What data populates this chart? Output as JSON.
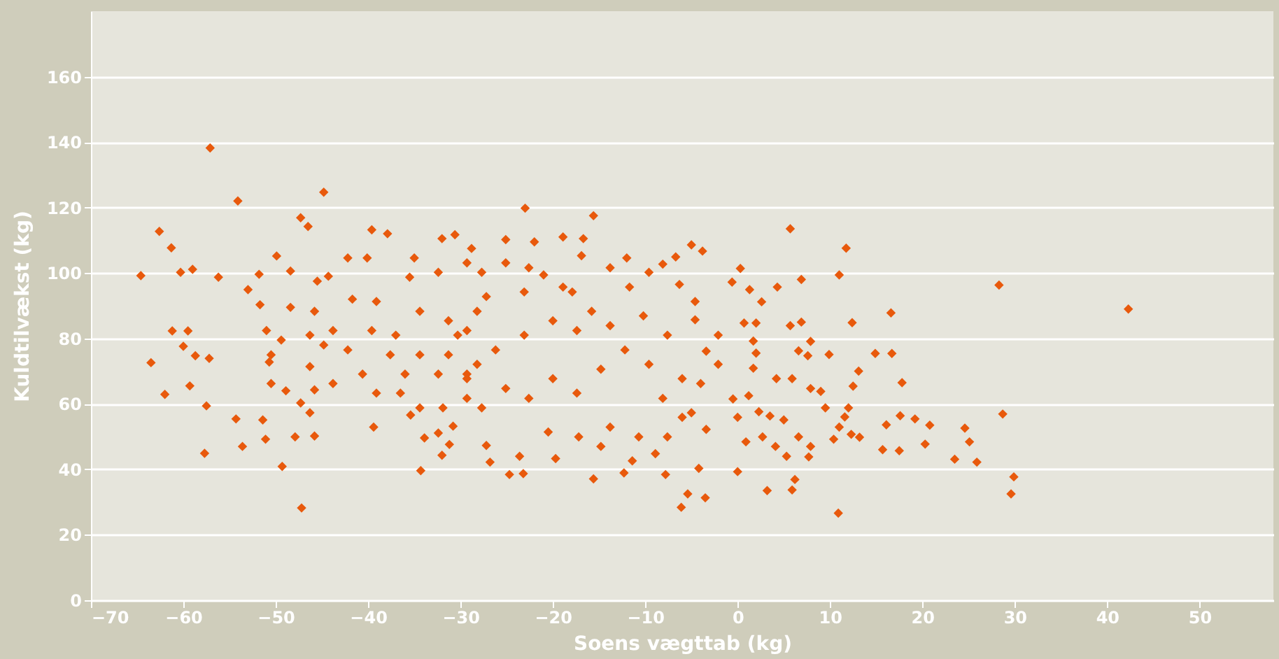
{
  "chart_data": {
    "type": "scatter",
    "xlabel": "Soens vægttab (kg)",
    "ylabel": "Kuldtilvækst (kg)",
    "marker": "diamond",
    "color": "#e8590c",
    "grid": "y",
    "xlim": [
      -70,
      58
    ],
    "ylim": [
      0,
      180
    ],
    "xticks": [
      -70,
      -60,
      -50,
      -40,
      -30,
      -20,
      -10,
      0,
      10,
      20,
      30,
      40,
      50
    ],
    "yticks": [
      0,
      20,
      40,
      60,
      80,
      100,
      120,
      140,
      160
    ],
    "x": [
      11.75,
      11.0,
      28.3,
      42.3,
      16.6,
      12.4,
      14.9,
      16.7,
      13.1,
      17.8,
      12.5,
      12.0,
      11.6,
      17.6,
      19.2,
      16.1,
      20.8,
      28.7,
      24.6,
      25.1,
      11.0,
      12.3,
      13.2,
      10.4,
      15.7,
      17.5,
      20.3,
      23.5,
      25.9,
      29.9,
      29.6,
      10.9,
      5.7,
      0.3,
      -0.6,
      1.3,
      4.3,
      2.6,
      6.9,
      0.7,
      2.0,
      5.7,
      6.9,
      1.7,
      2.0,
      7.9,
      9.9,
      6.6,
      7.6,
      1.7,
      4.2,
      1.2,
      5.9,
      7.9,
      9.0,
      -0.5,
      2.3,
      3.5,
      5.0,
      9.5,
      0.0,
      0.9,
      2.7,
      4.1,
      5.3,
      6.6,
      7.9,
      7.7,
      0.0,
      3.2,
      6.2,
      5.9,
      -5.0,
      -3.8,
      -6.7,
      -15.6,
      -23.0,
      -6.3,
      -8.1,
      -4.6,
      -2.1,
      -4.6,
      -3.4,
      -2.1,
      -4.0,
      -5.0,
      -3.4,
      -4.2,
      -3.5,
      -5.4,
      -6.1,
      -7.8,
      -8.9,
      -7.6,
      -6.0,
      -12.3,
      -15.6,
      -11.4,
      -14.8,
      -17.2,
      -19.7,
      -23.2,
      -24.7,
      -26.8,
      -27.2,
      -23.6,
      -20.5,
      -13.8,
      -10.7,
      -8.1,
      -6.0,
      -9.6,
      -12.2,
      -14.8,
      -17.4,
      -20.0,
      -22.6,
      -25.1,
      -27.7,
      -29.3,
      -26.2,
      -23.1,
      -20.0,
      -17.4,
      -13.8,
      -10.2,
      -7.6,
      -15.8,
      -18.9,
      -22.6,
      -25.1,
      -27.7,
      -28.8,
      -25.1,
      -22.0,
      -16.7,
      -18.9,
      -16.9,
      -21.0,
      -13.8,
      -12.0,
      -9.6,
      -11.7,
      -17.9,
      -23.1,
      -27.2,
      -29.3,
      -40.1,
      -37.9,
      -39.6,
      -32.0,
      -30.6,
      -35.0,
      -35.5,
      -32.4,
      -29.3,
      -42.2,
      -44.3,
      -45.5,
      -48.4,
      -49.9,
      -51.8,
      -53.0,
      -56.2,
      -48.4,
      -45.8,
      -41.7,
      -39.1,
      -34.4,
      -31.3,
      -28.2,
      -46.3,
      -43.8,
      -39.6,
      -37.0,
      -30.3,
      -51.0,
      -49.4,
      -50.5,
      -44.8,
      -42.2,
      -37.6,
      -34.4,
      -31.3,
      -28.2,
      -40.6,
      -36.0,
      -32.4,
      -29.3,
      -46.3,
      -50.7,
      -50.5,
      -48.9,
      -45.8,
      -43.8,
      -39.1,
      -36.5,
      -34.4,
      -31.9,
      -29.3,
      -47.3,
      -46.3,
      -51.4,
      -54.3,
      -45.8,
      -47.9,
      -39.4,
      -35.4,
      -33.9,
      -32.4,
      -30.8,
      -32.0,
      -31.2,
      -34.3,
      -49.3,
      -51.1,
      -53.6,
      -57.7,
      -57.5,
      -59.3,
      -62.0,
      -63.5,
      -61.2,
      -59.5,
      -60.0,
      -58.7,
      -57.2,
      -64.6,
      -62.6,
      -61.3,
      -60.3,
      -59.0,
      -57.1,
      -54.1,
      -44.8,
      -47.3,
      -46.5,
      -47.2,
      -51.7
    ],
    "values": [
      107.6,
      99.4,
      96.3,
      89,
      87.8,
      84.8,
      75.4,
      75.4,
      70,
      66.5,
      65.4,
      58.8,
      56,
      56.4,
      55.4,
      53.6,
      53.5,
      56.9,
      52.6,
      48.4,
      52.9,
      50.7,
      49.8,
      49.2,
      46,
      45.7,
      47.7,
      43.1,
      42.2,
      37.7,
      32.5,
      26.6,
      113.5,
      101.4,
      97.2,
      94.9,
      95.7,
      91.2,
      98,
      84.7,
      84.7,
      83.9,
      85,
      79.2,
      75.5,
      79.1,
      75.1,
      76.2,
      74.7,
      70.9,
      67.7,
      62.5,
      67.7,
      64.7,
      63.8,
      61.5,
      57.6,
      56.3,
      55.1,
      58.8,
      55.9,
      48.4,
      49.9,
      47,
      44,
      49.9,
      47,
      43.8,
      39.3,
      33.5,
      36.9,
      33.7,
      108.6,
      106.7,
      104.9,
      117.5,
      119.8,
      96.5,
      102.7,
      91.3,
      81,
      85.7,
      76.1,
      72.1,
      66.2,
      57.3,
      52.2,
      40.3,
      31.3,
      32.5,
      28.4,
      38.4,
      44.8,
      49.9,
      55.9,
      38.9,
      37.1,
      42.6,
      47,
      49.9,
      43.3,
      38.7,
      38.4,
      42.2,
      47.3,
      44,
      51.4,
      52.9,
      49.9,
      61.7,
      67.7,
      72.1,
      76.5,
      70.6,
      63.3,
      67.7,
      61.7,
      64.7,
      58.8,
      69.1,
      76.5,
      81,
      85.4,
      82.4,
      83.9,
      86.9,
      81,
      88.3,
      95.7,
      101.6,
      103.1,
      100.2,
      107.5,
      110.2,
      109.5,
      110.5,
      111,
      105.3,
      99.4,
      101.6,
      104.6,
      100.2,
      95.7,
      94.2,
      94.2,
      92.8,
      82.4,
      104.6,
      112,
      113.2,
      110.5,
      111.7,
      104.6,
      98.7,
      100.2,
      103.1,
      104.6,
      99,
      97.5,
      100.6,
      105.2,
      99.6,
      94.9,
      98.7,
      89.5,
      88.3,
      92,
      91.3,
      88.3,
      85.4,
      88.3,
      81,
      82.4,
      82.4,
      81,
      81,
      82.4,
      79.5,
      75,
      78,
      76.5,
      75,
      75,
      75,
      72.1,
      69.1,
      69.1,
      69.1,
      67.7,
      71.4,
      72.8,
      66.2,
      64,
      64.3,
      66.2,
      63.3,
      63.3,
      58.8,
      58.8,
      61.7,
      60.3,
      57.3,
      55.1,
      55.4,
      50.2,
      49.9,
      52.9,
      56.6,
      49.6,
      51.1,
      53.2,
      44.3,
      47.6,
      39.6,
      40.9,
      49.2,
      47,
      44.9,
      59.4,
      65.5,
      62.9,
      72.6,
      82.3,
      82.3,
      77.6,
      74.7,
      73.9,
      99.2,
      112.7,
      107.7,
      100.2,
      101.1,
      138.2,
      122,
      124.7,
      116.9,
      114.2,
      28.2,
      90.3
    ]
  }
}
